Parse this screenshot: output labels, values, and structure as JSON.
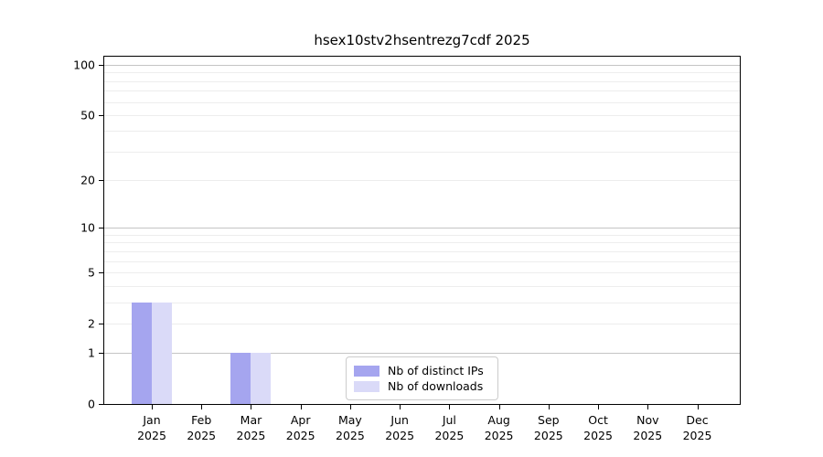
{
  "page": {
    "background_color": "#ffffff"
  },
  "chart_data": {
    "type": "bar",
    "title": "hsex10stv2hsentrezg7cdf 2025",
    "xlabel": "",
    "ylabel": "",
    "categories": [
      "Jan",
      "Feb",
      "Mar",
      "Apr",
      "May",
      "Jun",
      "Jul",
      "Aug",
      "Sep",
      "Oct",
      "Nov",
      "Dec"
    ],
    "category_year": "2025",
    "series": [
      {
        "name": "Nb of distinct IPs",
        "color": "#a5a5ef",
        "values": [
          3,
          0,
          1,
          0,
          0,
          0,
          0,
          0,
          0,
          0,
          0,
          0
        ]
      },
      {
        "name": "Nb of downloads",
        "color": "#dadaf8",
        "values": [
          3,
          0,
          1,
          0,
          0,
          0,
          0,
          0,
          0,
          0,
          0,
          0
        ]
      }
    ],
    "yscale": "log1p",
    "ylim": [
      0,
      112
    ],
    "yticks": [
      0,
      1,
      2,
      5,
      10,
      20,
      50,
      100
    ],
    "grid_minor_values": [
      2,
      3,
      4,
      5,
      6,
      7,
      8,
      9,
      20,
      30,
      40,
      50,
      60,
      70,
      80,
      90
    ],
    "grid_major_values": [
      1,
      10,
      100
    ],
    "legend": {
      "entries": [
        "Nb of distinct IPs",
        "Nb of downloads"
      ],
      "position": "lower-center"
    },
    "colors": {
      "axis": "#000000",
      "grid_minor": "#ededed",
      "grid_major": "#c4c4c4",
      "legend_border": "#cccccc"
    }
  }
}
